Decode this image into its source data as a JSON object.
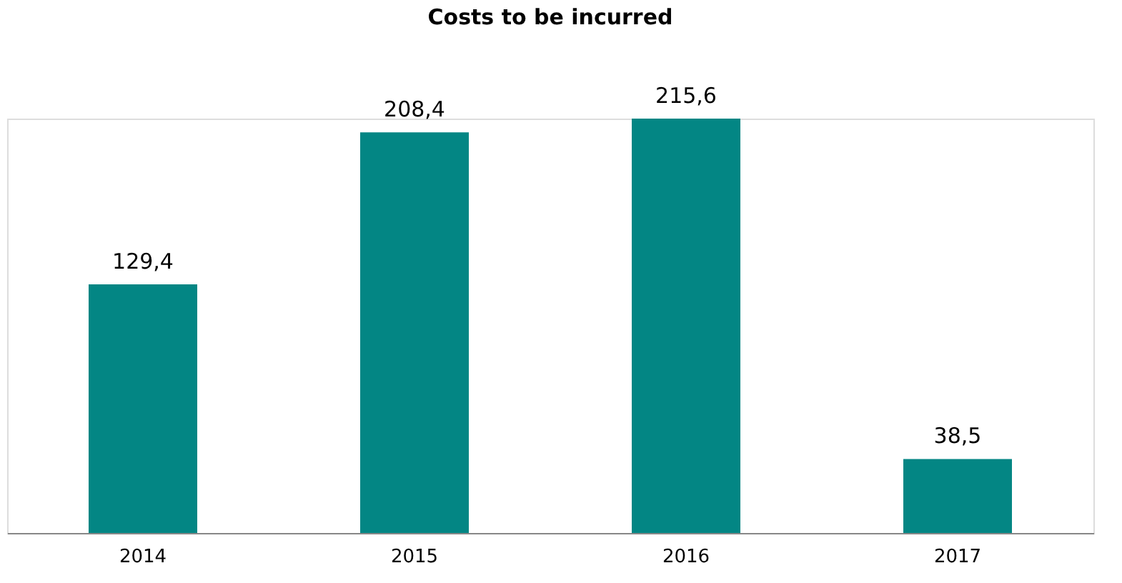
{
  "chart_data": {
    "type": "bar",
    "title": "Costs to be incurred",
    "categories": [
      "2014",
      "2015",
      "2016",
      "2017"
    ],
    "values": [
      129.4,
      208.4,
      215.6,
      38.5
    ],
    "value_labels": [
      "129,4",
      "208,4",
      "215,6",
      "38,5"
    ],
    "color": "#038684",
    "grid": false
  }
}
